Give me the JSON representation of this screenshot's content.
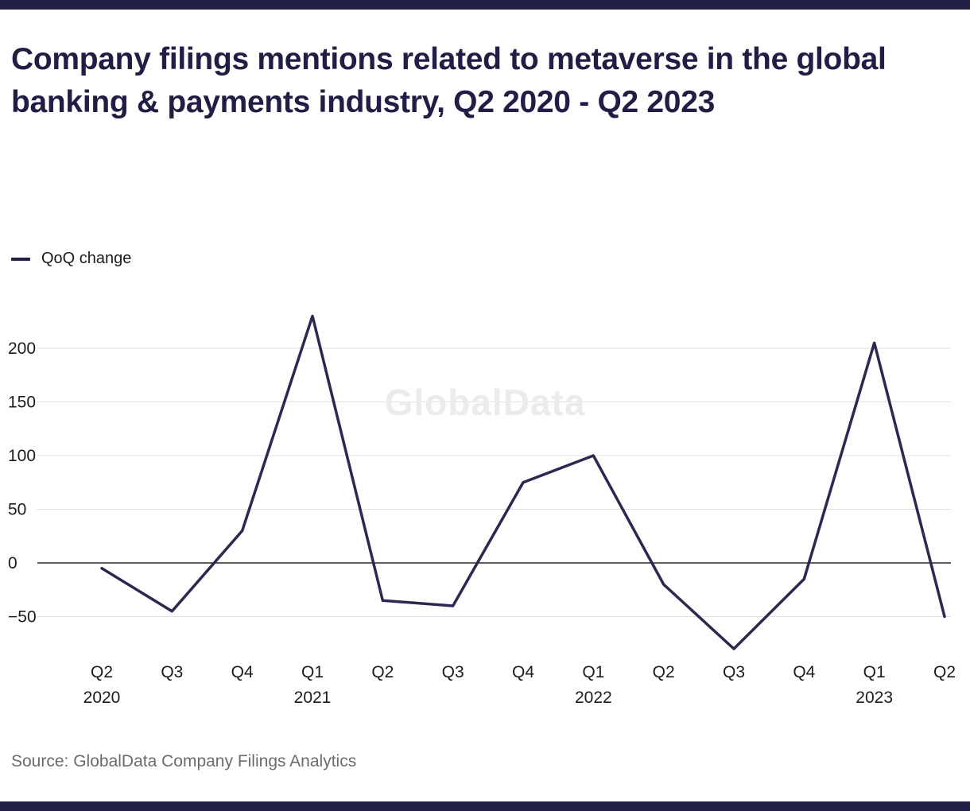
{
  "page": {
    "title": "Company filings mentions related to metaverse in the global banking & payments industry, Q2 2020 - Q2 2023",
    "source": "Source: GlobalData Company Filings Analytics"
  },
  "legend": {
    "label": "QoQ change"
  },
  "colors": {
    "accent": "#2b2950",
    "title": "#211e45",
    "bar": "#211e45",
    "text": "#1c1c1c",
    "grid": "#e0e0e0",
    "zero_line": "#2a2a2a",
    "watermark": "#ebebeb",
    "source_text": "#6b6b6b"
  },
  "chart_data": {
    "type": "line",
    "title": "Company filings mentions related to metaverse in the global banking & payments industry, Q2 2020 - Q2 2023",
    "watermark": "GlobalData",
    "grid": true,
    "legend_position": "top-left",
    "ylim": [
      -95,
      240
    ],
    "series": [
      {
        "name": "QoQ change",
        "values": [
          -5,
          -45,
          30,
          230,
          -35,
          -40,
          75,
          100,
          -20,
          -80,
          -15,
          205,
          -50
        ]
      }
    ],
    "x_ticks": [
      {
        "label": "Q2",
        "year": "2020"
      },
      {
        "label": "Q3",
        "year": ""
      },
      {
        "label": "Q4",
        "year": ""
      },
      {
        "label": "Q1",
        "year": "2021"
      },
      {
        "label": "Q2",
        "year": ""
      },
      {
        "label": "Q3",
        "year": ""
      },
      {
        "label": "Q4",
        "year": ""
      },
      {
        "label": "Q1",
        "year": "2022"
      },
      {
        "label": "Q2",
        "year": ""
      },
      {
        "label": "Q3",
        "year": ""
      },
      {
        "label": "Q4",
        "year": ""
      },
      {
        "label": "Q1",
        "year": "2023"
      },
      {
        "label": "Q2",
        "year": ""
      }
    ],
    "y_ticks": [
      {
        "value": 200,
        "label": "200"
      },
      {
        "value": 150,
        "label": "150"
      },
      {
        "value": 100,
        "label": "100"
      },
      {
        "value": 50,
        "label": "50"
      },
      {
        "value": 0,
        "label": "0"
      },
      {
        "value": -50,
        "label": "−50"
      }
    ]
  }
}
